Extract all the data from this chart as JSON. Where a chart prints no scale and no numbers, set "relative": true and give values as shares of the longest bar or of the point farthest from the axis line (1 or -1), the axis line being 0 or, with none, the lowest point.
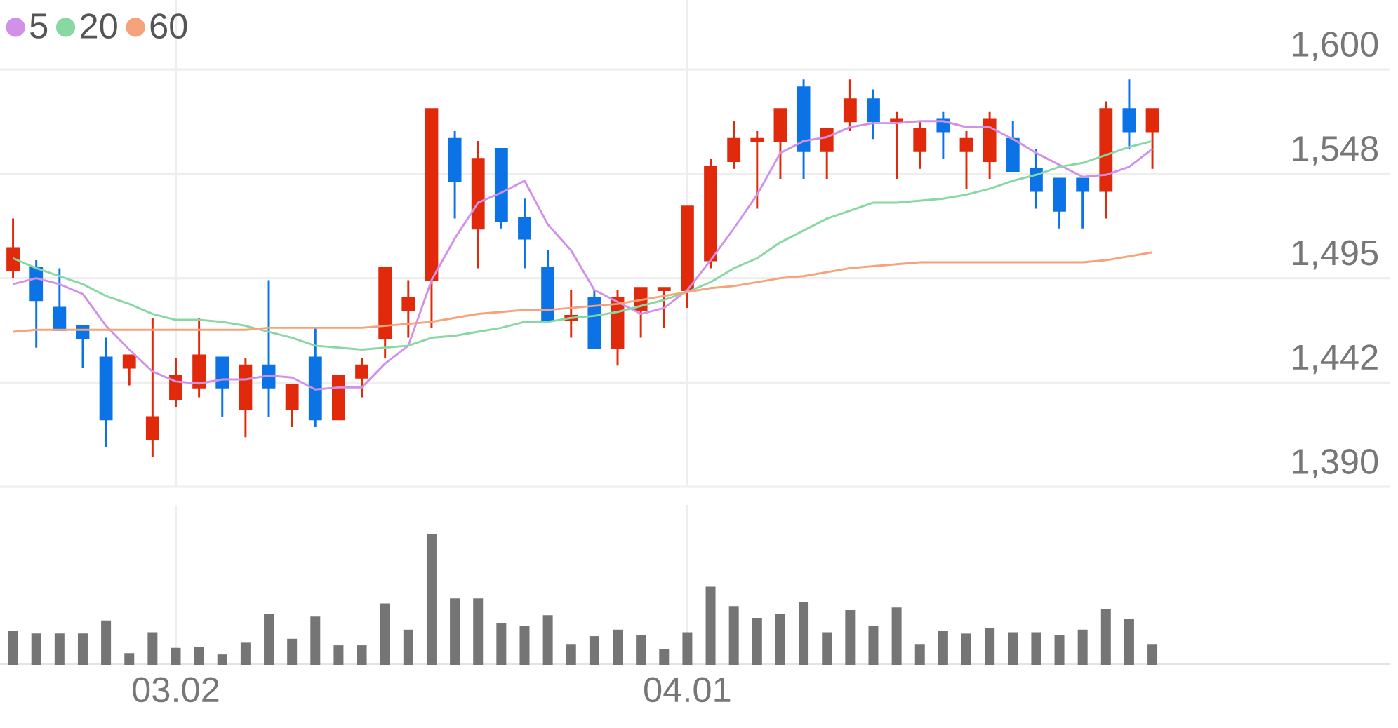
{
  "chart_data": [
    {
      "type": "candlestick",
      "categories": [
        null,
        null,
        null,
        null,
        null,
        null,
        null,
        "03.02",
        null,
        null,
        null,
        null,
        null,
        null,
        null,
        null,
        null,
        null,
        null,
        null,
        null,
        null,
        null,
        null,
        null,
        null,
        null,
        null,
        null,
        "04.01",
        null,
        null,
        null,
        null,
        null,
        null,
        null,
        null,
        null,
        null,
        null,
        null,
        null,
        null,
        null,
        null,
        null,
        null,
        null,
        null
      ],
      "ohlc": [
        [
          1499,
          1525,
          1495,
          1510
        ],
        [
          1500,
          1504,
          1460,
          1484
        ],
        [
          1480,
          1500,
          1469,
          1469
        ],
        [
          1471,
          1471,
          1450,
          1465
        ],
        [
          1455,
          1465,
          1410,
          1424
        ],
        [
          1450,
          1456,
          1441,
          1456
        ],
        [
          1414,
          1475,
          1405,
          1425
        ],
        [
          1434,
          1455,
          1430,
          1446
        ],
        [
          1440,
          1475,
          1435,
          1456
        ],
        [
          1455,
          1455,
          1425,
          1440
        ],
        [
          1429,
          1455,
          1415,
          1451
        ],
        [
          1451,
          1494,
          1425,
          1440
        ],
        [
          1429,
          1441,
          1420,
          1441
        ],
        [
          1455,
          1470,
          1420,
          1424
        ],
        [
          1424,
          1446,
          1424,
          1446
        ],
        [
          1445,
          1455,
          1435,
          1451
        ],
        [
          1465,
          1500,
          1455,
          1500
        ],
        [
          1479,
          1494,
          1465,
          1485
        ],
        [
          1494,
          1580,
          1470,
          1580
        ],
        [
          1565,
          1569,
          1525,
          1544
        ],
        [
          1520,
          1564,
          1500,
          1555
        ],
        [
          1560,
          1560,
          1520,
          1524
        ],
        [
          1525,
          1535,
          1500,
          1515
        ],
        [
          1500,
          1509,
          1474,
          1474
        ],
        [
          1474,
          1489,
          1465,
          1476
        ],
        [
          1485,
          1489,
          1460,
          1460
        ],
        [
          1460,
          1489,
          1451,
          1485
        ],
        [
          1479,
          1490,
          1465,
          1490
        ],
        [
          1489,
          1490,
          1470,
          1490
        ],
        [
          1489,
          1531,
          1480,
          1531
        ],
        [
          1504,
          1555,
          1500,
          1551
        ],
        [
          1554,
          1574,
          1550,
          1565
        ],
        [
          1564,
          1569,
          1530,
          1565
        ],
        [
          1564,
          1580,
          1545,
          1580
        ],
        [
          1591,
          1595,
          1545,
          1559
        ],
        [
          1559,
          1570,
          1545,
          1570
        ],
        [
          1574,
          1595,
          1569,
          1585
        ],
        [
          1585,
          1590,
          1565,
          1574
        ],
        [
          1574,
          1579,
          1545,
          1575
        ],
        [
          1559,
          1574,
          1550,
          1570
        ],
        [
          1575,
          1579,
          1555,
          1569
        ],
        [
          1559,
          1569,
          1540,
          1565
        ],
        [
          1554,
          1579,
          1545,
          1575
        ],
        [
          1565,
          1574,
          1549,
          1549
        ],
        [
          1550,
          1560,
          1530,
          1539
        ],
        [
          1545,
          1545,
          1520,
          1529
        ],
        [
          1545,
          1545,
          1520,
          1539
        ],
        [
          1539,
          1584,
          1525,
          1580
        ],
        [
          1580,
          1595,
          1560,
          1569
        ],
        [
          1569,
          1580,
          1550,
          1580
        ]
      ],
      "colors": [
        "#e02a0b",
        "#0b73e6",
        "#0b73e6",
        "#0b73e6",
        "#0b73e6",
        "#e02a0b",
        "#e02a0b",
        "#e02a0b",
        "#e02a0b",
        "#0b73e6",
        "#e02a0b",
        "#0b73e6",
        "#e02a0b",
        "#0b73e6",
        "#e02a0b",
        "#e02a0b",
        "#e02a0b",
        "#e02a0b",
        "#e02a0b",
        "#0b73e6",
        "#e02a0b",
        "#0b73e6",
        "#0b73e6",
        "#0b73e6",
        "#e02a0b",
        "#0b73e6",
        "#e02a0b",
        "#e02a0b",
        "#e02a0b",
        "#e02a0b",
        "#e02a0b",
        "#e02a0b",
        "#e02a0b",
        "#e02a0b",
        "#0b73e6",
        "#e02a0b",
        "#e02a0b",
        "#0b73e6",
        "#e02a0b",
        "#e02a0b",
        "#0b73e6",
        "#e02a0b",
        "#e02a0b",
        "#0b73e6",
        "#0b73e6",
        "#0b73e6",
        "#0b73e6",
        "#e02a0b",
        "#0b73e6",
        "#e02a0b"
      ],
      "series": [
        {
          "name": "5",
          "type": "line",
          "color": "#d291e8",
          "values": [
            1492,
            1495,
            1492,
            1487,
            1471,
            1459,
            1448,
            1443,
            1442,
            1444,
            1444,
            1446,
            1445,
            1439,
            1440,
            1440,
            1452,
            1461,
            1494,
            1515,
            1533,
            1538,
            1544,
            1522,
            1509,
            1489,
            1483,
            1477,
            1480,
            1489,
            1504,
            1520,
            1537,
            1558,
            1564,
            1566,
            1571,
            1573,
            1573,
            1574,
            1574,
            1571,
            1571,
            1565,
            1558,
            1552,
            1546,
            1547,
            1551,
            1560
          ]
        },
        {
          "name": "20",
          "type": "line",
          "color": "#88d8a3",
          "values": [
            1505,
            1500,
            1496,
            1492,
            1486,
            1482,
            1477,
            1474,
            1474,
            1473,
            1471,
            1468,
            1465,
            1461,
            1460,
            1459,
            1460,
            1461,
            1465,
            1466,
            1468,
            1470,
            1473,
            1473,
            1475,
            1476,
            1478,
            1481,
            1484,
            1488,
            1493,
            1500,
            1505,
            1513,
            1519,
            1525,
            1529,
            1533,
            1533,
            1534,
            1535,
            1537,
            1540,
            1544,
            1547,
            1551,
            1553,
            1557,
            1561,
            1564
          ]
        },
        {
          "name": "60",
          "type": "line",
          "color": "#f6a27a",
          "values": [
            1468,
            1469,
            1469,
            1469,
            1469,
            1469,
            1469,
            1469,
            1469,
            1469,
            1469,
            1470,
            1470,
            1470,
            1470,
            1470,
            1471,
            1472,
            1473,
            1475,
            1477,
            1478,
            1479,
            1479,
            1480,
            1481,
            1482,
            1484,
            1486,
            1488,
            1490,
            1491,
            1493,
            1495,
            1496,
            1498,
            1500,
            1501,
            1502,
            1503,
            1503,
            1503,
            1503,
            1503,
            1503,
            1503,
            1503,
            1504,
            1506,
            1508
          ]
        }
      ],
      "ylim": [
        1390,
        1635
      ],
      "yticks": [
        {
          "value": 1390,
          "label": "1,390"
        },
        {
          "value": 1442.5,
          "label": "1,442"
        },
        {
          "value": 1495,
          "label": "1,495"
        },
        {
          "value": 1547.5,
          "label": "1,548"
        },
        {
          "value": 1600,
          "label": "1,600"
        }
      ],
      "grid": true,
      "legend": "top left",
      "tick_labels": "y"
    },
    {
      "type": "bar",
      "categories": [
        null,
        null,
        null,
        null,
        null,
        null,
        null,
        "03.02",
        null,
        null,
        null,
        null,
        null,
        null,
        null,
        null,
        null,
        null,
        null,
        null,
        null,
        null,
        null,
        null,
        null,
        null,
        null,
        null,
        null,
        "04.01",
        null,
        null,
        null,
        null,
        null,
        null,
        null,
        null,
        null,
        null,
        null,
        null,
        null,
        null,
        null,
        null,
        null,
        null,
        null,
        null
      ],
      "values": [
        0.26,
        0.24,
        0.24,
        0.24,
        0.34,
        0.09,
        0.25,
        0.13,
        0.14,
        0.08,
        0.17,
        0.39,
        0.2,
        0.37,
        0.15,
        0.15,
        0.47,
        0.27,
        1,
        0.51,
        0.51,
        0.32,
        0.3,
        0.38,
        0.16,
        0.22,
        0.27,
        0.23,
        0.12,
        0.25,
        0.6,
        0.45,
        0.36,
        0.39,
        0.48,
        0.25,
        0.42,
        0.3,
        0.44,
        0.16,
        0.26,
        0.24,
        0.28,
        0.25,
        0.25,
        0.23,
        0.27,
        0.43,
        0.35,
        0.16
      ],
      "color": "#757575",
      "relative": true,
      "grid": "x"
    }
  ]
}
